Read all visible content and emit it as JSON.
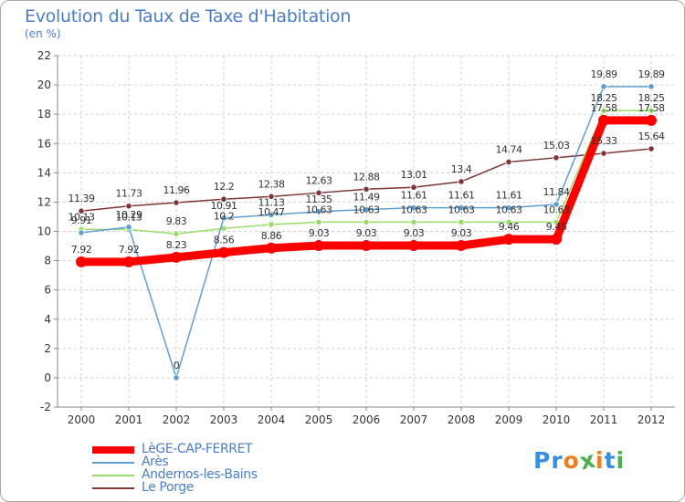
{
  "title": "Evolution du Taux de Taxe d'Habitation",
  "subtitle": "(en %)",
  "logo": {
    "text": "Proxiti",
    "letter_colors": [
      "#3a8ede",
      "#3a8ede",
      "#ee7d1c",
      "#4cae4c",
      "#ee7d1c",
      "#3a8ede",
      "#4cae4c"
    ]
  },
  "chart_data": {
    "type": "line",
    "title": "Evolution du Taux de Taxe d'Habitation",
    "ylabel": "(en %)",
    "xlabel": "",
    "ylim": [
      -2,
      22
    ],
    "yticks": [
      -2,
      0,
      2,
      4,
      6,
      8,
      10,
      12,
      14,
      16,
      18,
      20,
      22
    ],
    "grid": true,
    "x": [
      "2000",
      "2001",
      "2002",
      "2003",
      "2004",
      "2005",
      "2006",
      "2007",
      "2008",
      "2009",
      "2010",
      "2011",
      "2012"
    ],
    "series": [
      {
        "name": "LèGE-CAP-FERRET",
        "color": "#ff0000",
        "values": [
          7.92,
          7.92,
          8.23,
          8.56,
          8.86,
          9.03,
          9.03,
          9.03,
          9.03,
          9.46,
          9.46,
          17.58,
          17.58
        ],
        "labels": [
          "7.92",
          "7.92",
          "8.23",
          "8.56",
          "8.86",
          "9.03",
          "9.03",
          "9.03",
          "9.03",
          "9.46",
          "9.46",
          "17.58",
          "17.58"
        ]
      },
      {
        "name": "Arès",
        "color": "#5f9fd0",
        "values": [
          9.91,
          10.29,
          0,
          10.91,
          11.13,
          11.35,
          11.49,
          11.61,
          11.61,
          11.61,
          11.84,
          19.89,
          19.89
        ],
        "labels": [
          "9.91",
          "10.29",
          "0",
          "10.91",
          "11.13",
          "11.35",
          "11.49",
          "11.61",
          "11.61",
          "11.61",
          "11.84",
          "19.89",
          "19.89"
        ]
      },
      {
        "name": "Andernos-les-Bains",
        "color": "#98dc6a",
        "values": [
          10.13,
          10.13,
          9.83,
          10.2,
          10.47,
          10.63,
          10.63,
          10.63,
          10.63,
          10.63,
          10.63,
          18.25,
          18.25
        ],
        "labels": [
          "10.13",
          "10.13",
          "9.83",
          "10.2",
          "10.47",
          "10.63",
          "10.63",
          "10.63",
          "10.63",
          "10.63",
          "10.63",
          "18.25",
          "18.25"
        ]
      },
      {
        "name": "Le Porge",
        "color": "#7e3535",
        "values": [
          11.39,
          11.73,
          11.96,
          12.2,
          12.38,
          12.63,
          12.88,
          13.01,
          13.4,
          14.74,
          15.03,
          15.33,
          15.64
        ],
        "labels": [
          "11.39",
          "11.73",
          "11.96",
          "12.2",
          "12.38",
          "12.63",
          "12.88",
          "13.01",
          "13.4",
          "14.74",
          "15.03",
          "15.33",
          "15.64"
        ]
      }
    ]
  }
}
